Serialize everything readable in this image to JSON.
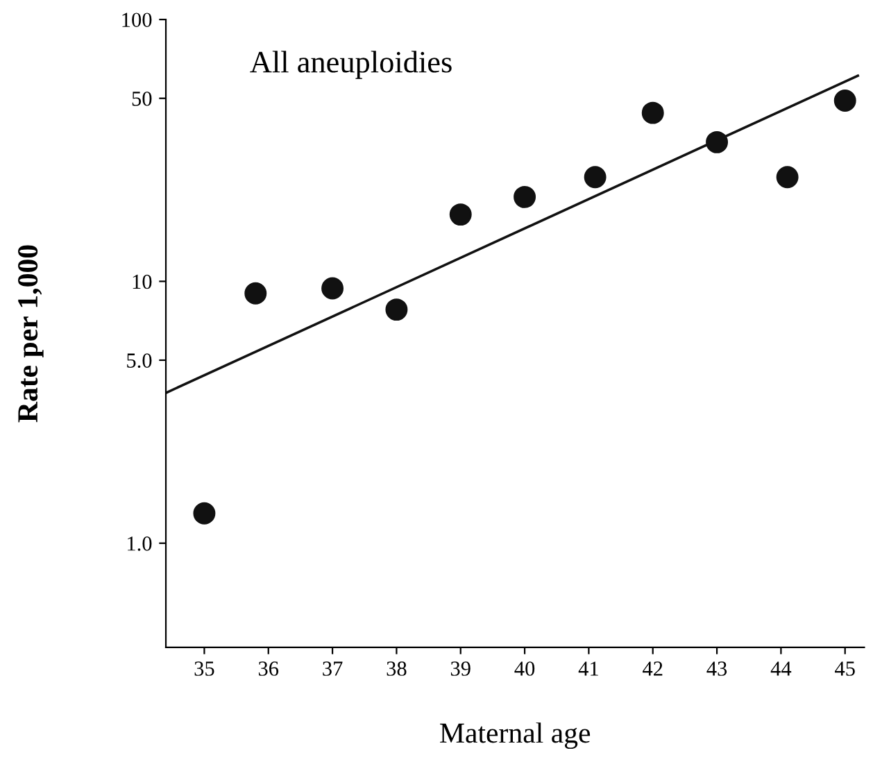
{
  "chart_data": {
    "type": "scatter",
    "title": "All aneuploidies",
    "xlabel": "Maternal age",
    "ylabel": "Rate per 1,000",
    "log": "y",
    "grid": false,
    "marker": "circle",
    "xlim": [
      34.4,
      45.3
    ],
    "ylim": [
      0.4,
      100
    ],
    "xticks": [
      35,
      36,
      37,
      38,
      39,
      40,
      41,
      42,
      43,
      44,
      45
    ],
    "yticks": [
      {
        "value": 1,
        "label": "1.0"
      },
      {
        "value": 5,
        "label": "5.0"
      },
      10,
      50,
      100
    ],
    "series": [
      {
        "color": "#111111",
        "x": [
          35,
          35.8,
          37,
          38,
          39,
          40,
          41.1,
          42,
          43,
          44.1,
          45
        ],
        "values": [
          1.3,
          9.0,
          9.4,
          7.8,
          18,
          21,
          25,
          44,
          34,
          25,
          49
        ]
      },
      {
        "type": "line",
        "color": "#111111",
        "line_style": "solid",
        "marker": "none",
        "x": [
          34.4,
          45.2
        ],
        "values": [
          3.75,
          61
        ]
      }
    ]
  }
}
